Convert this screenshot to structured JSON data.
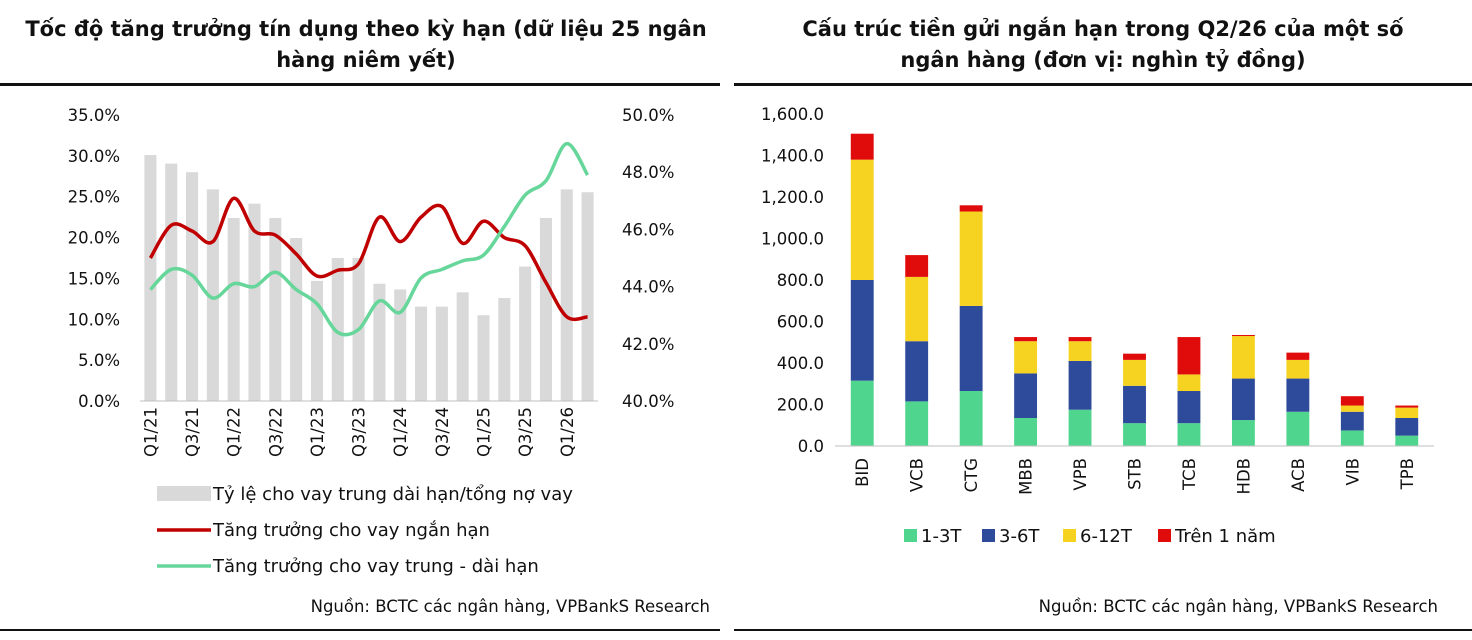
{
  "charts": [
    {
      "id": "credit_growth_by_term",
      "title": "Tốc độ tăng trưởng tín dụng theo kỳ hạn (dữ liệu 25 ngân hàng niêm yết)",
      "source": "Nguồn: BCTC các ngân hàng, VPBankS Research"
    },
    {
      "id": "short_term_deposit_structure",
      "title": "Cấu trúc tiền gửi ngắn hạn trong Q2/26 của một số ngân hàng (đơn vị: nghìn tỷ đồng)",
      "source": "Nguồn: BCTC các ngân hàng, VPBankS Research"
    }
  ],
  "chart_data": [
    {
      "type": "bar+line",
      "title": "Tốc độ tăng trưởng tín dụng theo kỳ hạn (dữ liệu 25 ngân hàng niêm yết)",
      "x_tick_labels": [
        "Q1/21",
        "Q3/21",
        "Q1/22",
        "Q3/22",
        "Q1/23",
        "Q3/23",
        "Q1/24",
        "Q3/24",
        "Q1/25",
        "Q3/25",
        "Q1/26"
      ],
      "y_left": {
        "ticks": [
          "0.0%",
          "5.0%",
          "10.0%",
          "15.0%",
          "20.0%",
          "25.0%",
          "30.0%",
          "35.0%"
        ],
        "range": [
          0,
          35
        ]
      },
      "y_right": {
        "ticks": [
          "40.0%",
          "42.0%",
          "44.0%",
          "46.0%",
          "48.0%",
          "50.0%"
        ],
        "range": [
          40,
          50
        ]
      },
      "grid": false,
      "legend_position": "bottom",
      "series": [
        {
          "name": "Tỷ lệ cho vay trung dài hạn/tổng nợ vay",
          "kind": "bar",
          "axis": "right",
          "color": "#d9d9d9",
          "values": [
            48.6,
            48.3,
            48.0,
            47.4,
            46.4,
            46.9,
            46.4,
            45.7,
            44.2,
            45.0,
            45.0,
            44.1,
            43.9,
            43.3,
            43.3,
            43.8,
            43.0,
            43.6,
            44.7,
            46.4,
            47.4,
            47.3
          ]
        },
        {
          "name": "Tăng trưởng cho vay ngắn hạn",
          "kind": "line",
          "axis": "left",
          "color": "#c00000",
          "values": [
            17.5,
            21.5,
            20.8,
            19.5,
            24.8,
            20.8,
            20.3,
            18.0,
            15.3,
            16.0,
            16.8,
            22.5,
            19.5,
            22.5,
            23.8,
            19.3,
            22.0,
            20.0,
            19.0,
            14.5,
            10.3,
            10.3
          ]
        },
        {
          "name": "Tăng trưởng cho vay trung - dài hạn",
          "kind": "line",
          "axis": "right",
          "color": "#66d69a",
          "values": [
            43.9,
            44.6,
            44.4,
            43.6,
            44.1,
            44.0,
            44.5,
            43.9,
            43.4,
            42.4,
            42.5,
            43.5,
            43.1,
            44.3,
            44.6,
            44.9,
            45.1,
            46.1,
            47.2,
            47.7,
            49.0,
            47.9
          ]
        }
      ]
    },
    {
      "type": "bar",
      "stacked": true,
      "title": "Cấu trúc tiền gửi ngắn hạn trong Q2/26 của một số ngân hàng (đơn vị: nghìn tỷ đồng)",
      "categories": [
        "BID",
        "VCB",
        "CTG",
        "MBB",
        "VPB",
        "STB",
        "TCB",
        "HDB",
        "ACB",
        "VIB",
        "TPB"
      ],
      "y_ticks": [
        "0.0",
        "200.0",
        "400.0",
        "600.0",
        "800.0",
        "1,000.0",
        "1,200.0",
        "1,400.0",
        "1,600.0"
      ],
      "ylim": [
        0,
        1600
      ],
      "grid": false,
      "legend_position": "bottom",
      "series": [
        {
          "name": "1-3T",
          "color": "#4fd58e",
          "values": [
            315,
            215,
            265,
            135,
            175,
            110,
            110,
            125,
            165,
            75,
            50
          ]
        },
        {
          "name": "3-6T",
          "color": "#2e4a9a",
          "values": [
            485,
            290,
            410,
            215,
            235,
            180,
            155,
            200,
            160,
            90,
            85
          ]
        },
        {
          "name": "6-12T",
          "color": "#f5d320",
          "values": [
            580,
            310,
            455,
            155,
            95,
            125,
            80,
            205,
            90,
            30,
            50
          ]
        },
        {
          "name": "Trên 1 năm",
          "color": "#e00b0b",
          "values": [
            125,
            105,
            30,
            20,
            20,
            30,
            180,
            5,
            35,
            45,
            10
          ]
        }
      ]
    }
  ]
}
